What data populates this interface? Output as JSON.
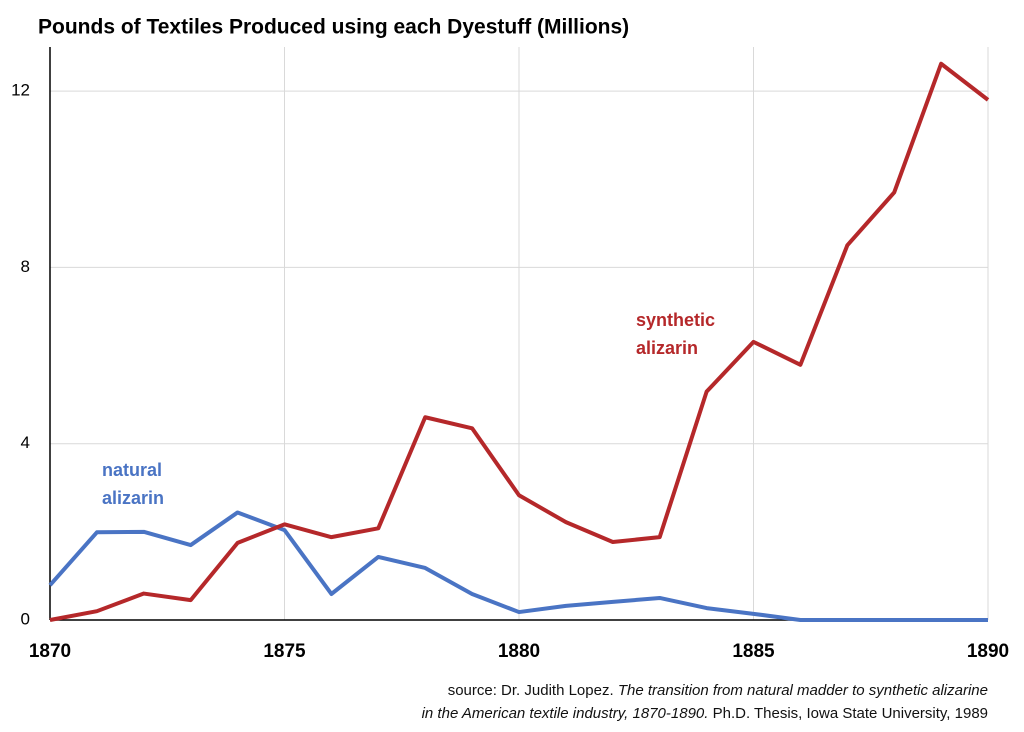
{
  "chart_data": {
    "type": "line",
    "title": "Pounds of Textiles Produced using each Dyestuff (Millions)",
    "x": [
      1870,
      1871,
      1872,
      1873,
      1874,
      1875,
      1876,
      1877,
      1878,
      1879,
      1880,
      1881,
      1882,
      1883,
      1884,
      1885,
      1886,
      1887,
      1888,
      1889,
      1890
    ],
    "series": [
      {
        "name": "natural alizarin",
        "color": "#4a74c4",
        "values": [
          0.79,
          1.99,
          2.0,
          1.7,
          2.44,
          2.04,
          0.59,
          1.43,
          1.18,
          0.59,
          0.18,
          0.32,
          0.41,
          0.5,
          0.27,
          0.14,
          0,
          0,
          0,
          0,
          0
        ]
      },
      {
        "name": "synthetic alizarin",
        "color": "#b5282a",
        "values": [
          0,
          0.2,
          0.6,
          0.45,
          1.75,
          2.17,
          1.88,
          2.08,
          4.6,
          4.35,
          2.83,
          2.22,
          1.77,
          1.88,
          5.18,
          6.31,
          5.79,
          8.5,
          9.7,
          12.62,
          11.8
        ]
      }
    ],
    "xlim": [
      1870,
      1890
    ],
    "xticks": [
      1870,
      1875,
      1880,
      1885,
      1890
    ],
    "ylim": [
      0,
      13
    ],
    "yticks": [
      0,
      4,
      8,
      12
    ],
    "grid": true,
    "source": {
      "author": "source: Dr. Judith Lopez.",
      "title_line1": "The transition from natural madder to synthetic alizarine",
      "title_line2": "in the American textile industry, 1870-1890.",
      "publication": "Ph.D. Thesis, Iowa State University, 1989"
    }
  }
}
